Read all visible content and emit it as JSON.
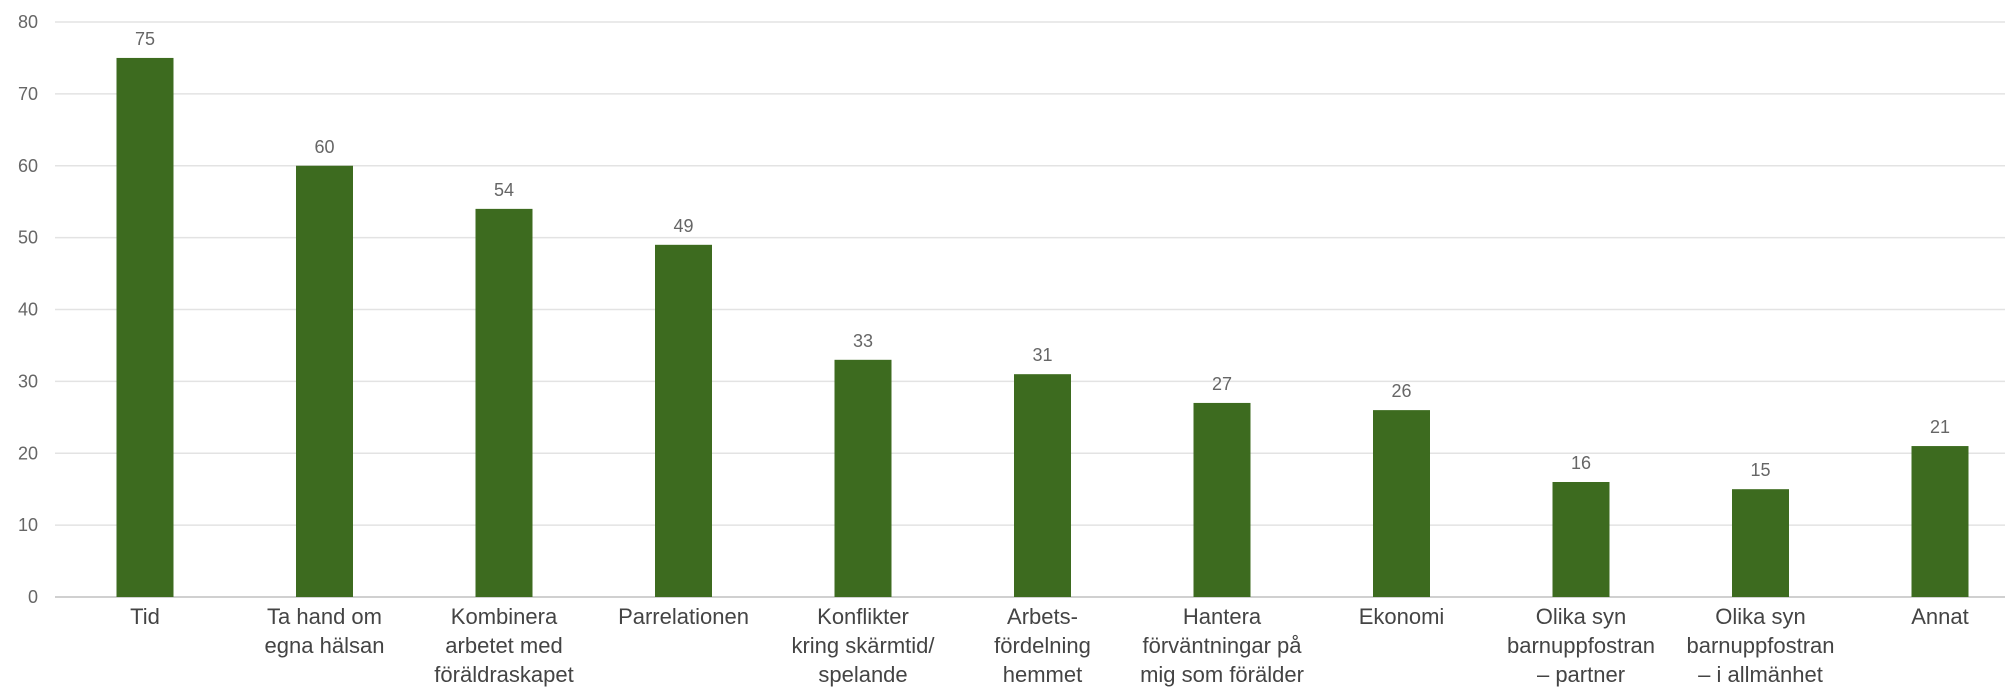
{
  "chart_data": {
    "type": "bar",
    "title": "",
    "xlabel": "",
    "ylabel": "",
    "ylim": [
      0,
      80
    ],
    "yticks": [
      0,
      10,
      20,
      30,
      40,
      50,
      60,
      70,
      80
    ],
    "grid": true,
    "legend": "none",
    "bar_color": "#3d6b1f",
    "categories": [
      [
        "Tid"
      ],
      [
        "Ta hand om",
        "egna hälsan"
      ],
      [
        "Kombinera",
        "arbetet med",
        "föräldraskapet"
      ],
      [
        "Parrelationen"
      ],
      [
        "Konflikter",
        "kring skärmtid/",
        "spelande"
      ],
      [
        "Arbets-",
        "fördelning",
        "hemmet"
      ],
      [
        "Hantera",
        "förväntningar på",
        "mig som förälder"
      ],
      [
        "Ekonomi"
      ],
      [
        "Olika syn",
        "barnuppfostran",
        "– partner"
      ],
      [
        "Olika syn",
        "barnuppfostran",
        "– i allmänhet"
      ],
      [
        "Annat"
      ]
    ],
    "values": [
      75,
      60,
      54,
      49,
      33,
      31,
      27,
      26,
      16,
      15,
      21
    ]
  }
}
